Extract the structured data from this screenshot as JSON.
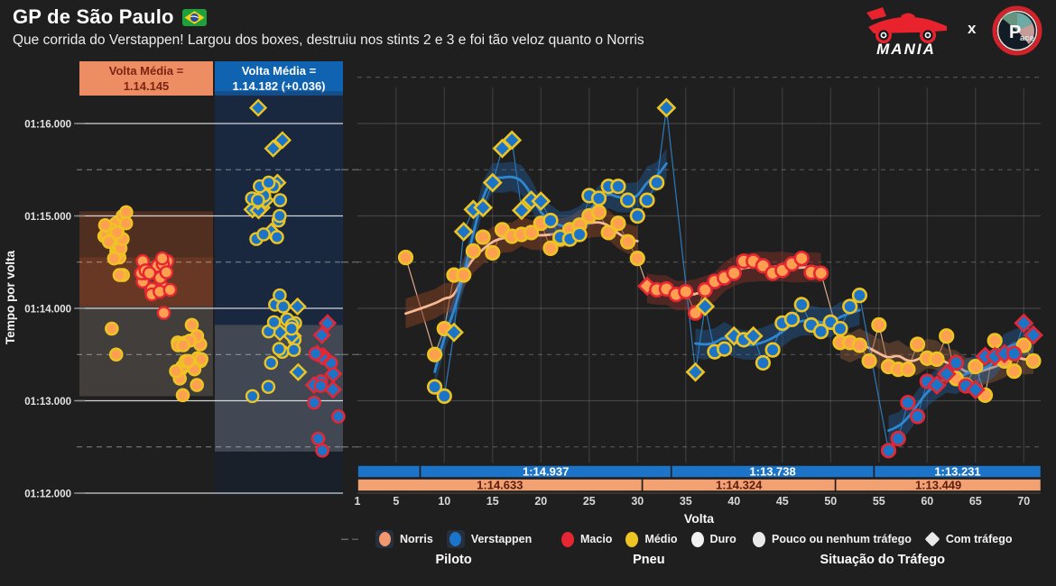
{
  "header": {
    "title": "GP de São Paulo",
    "subtitle": "Que corrida do Verstappen! Largou dos boxes, destruiu nos stints 2 e 3 e foi tão veloz quanto o Norris"
  },
  "logos": {
    "mania_label": "MANIA",
    "separator": "x",
    "pace_initial": "P",
    "pace_rest": "ace"
  },
  "left_panel": {
    "norris_box": "Volta Média =\n1.14.145",
    "verstappen_box": "Volta Média =\n1.14.182 (+0.036)"
  },
  "axes": {
    "y_title": "Tempo por volta",
    "x_title": "Volta"
  },
  "legend": {
    "groups": [
      {
        "title": "Piloto",
        "items": [
          {
            "label": "Norris",
            "shape": "circle-on-card",
            "color": "#F2986E"
          },
          {
            "label": "Verstappen",
            "shape": "circle-on-card",
            "color": "#1B74C8"
          }
        ]
      },
      {
        "title": "Pneu",
        "items": [
          {
            "label": "Macio",
            "shape": "circle",
            "color": "#E62632"
          },
          {
            "label": "Médio",
            "shape": "circle",
            "color": "#EDC421"
          },
          {
            "label": "Duro",
            "shape": "circle",
            "color": "#F2F2F2"
          }
        ]
      },
      {
        "title": "Situação do Tráfego",
        "items": [
          {
            "label": "Pouco ou nenhum tráfego",
            "shape": "circle",
            "color": "#E9E9E9"
          },
          {
            "label": "Com tráfego",
            "shape": "diamond",
            "color": "#E9E9E9"
          }
        ]
      }
    ]
  },
  "chart_data": {
    "type": "scatter",
    "title": "GP de São Paulo — tempo por volta",
    "xlabel": "Volta",
    "ylabel": "Tempo por volta",
    "x_ticks": [
      1,
      5,
      10,
      15,
      20,
      25,
      30,
      35,
      40,
      45,
      50,
      55,
      60,
      65,
      70
    ],
    "x_range": [
      0.5,
      71.8
    ],
    "y_ticks": [
      "01:16.000",
      "01:15.000",
      "01:14.000",
      "01:13.000",
      "01:12.000"
    ],
    "y_tick_seconds": [
      76,
      75,
      74,
      73,
      72
    ],
    "y_range_seconds": [
      71.95,
      76.4
    ],
    "grid": true,
    "legend_position": "bottom",
    "colors": {
      "background": "#1F1F1F",
      "norris_fill": "#FFA050",
      "norris_trend": "#FFC29B",
      "verstappen_fill": "#1B74C8",
      "verstappen_trend": "#2F8BD8",
      "macio": "#E62632",
      "medio": "#EDC421",
      "duro": "#F2F2F2",
      "bar_blue": "#1B74C8",
      "bar_orange": "#F2A172",
      "header_orange": "#EC8D64",
      "header_blue": "#0F63B0"
    },
    "series": [
      {
        "name": "Norris",
        "key": "norris",
        "swarm_centers": [
          128,
          172,
          210
        ],
        "stints": [
          {
            "tire": "medio",
            "ribbon": "rgba(128,62,34,0.55)",
            "laps": [
              [
                6,
                74.55,
                0
              ],
              [
                9,
                73.5,
                0
              ],
              [
                10,
                73.78,
                0
              ],
              [
                11,
                74.36,
                0
              ],
              [
                12,
                74.36,
                0
              ],
              [
                13,
                74.62,
                0
              ],
              [
                14,
                74.77,
                0
              ],
              [
                15,
                74.6,
                0
              ],
              [
                16,
                74.85,
                0
              ],
              [
                17,
                74.78,
                0
              ],
              [
                18,
                74.8,
                0
              ],
              [
                19,
                74.82,
                0
              ],
              [
                20,
                74.92,
                0
              ],
              [
                21,
                74.65,
                0
              ],
              [
                22,
                74.75,
                0
              ],
              [
                23,
                74.85,
                0
              ],
              [
                24,
                74.9,
                0
              ],
              [
                25,
                75.0,
                0
              ],
              [
                26,
                75.04,
                0
              ],
              [
                27,
                74.82,
                0
              ],
              [
                28,
                74.92,
                0
              ],
              [
                29,
                74.72,
                0
              ],
              [
                30,
                74.54,
                0
              ]
            ]
          },
          {
            "tire": "macio",
            "ribbon": "rgba(130,48,38,0.5)",
            "laps": [
              [
                31,
                74.24,
                1
              ],
              [
                32,
                74.2,
                0
              ],
              [
                33,
                74.21,
                0
              ],
              [
                34,
                74.15,
                0
              ],
              [
                35,
                74.18,
                0
              ],
              [
                36,
                73.95,
                0
              ],
              [
                37,
                74.2,
                0
              ],
              [
                38,
                74.29,
                0
              ],
              [
                39,
                74.33,
                0
              ],
              [
                40,
                74.38,
                0
              ],
              [
                41,
                74.51,
                0
              ],
              [
                42,
                74.51,
                0
              ],
              [
                43,
                74.46,
                0
              ],
              [
                44,
                74.38,
                0
              ],
              [
                45,
                74.41,
                0
              ],
              [
                46,
                74.48,
                0
              ],
              [
                47,
                74.54,
                0
              ],
              [
                48,
                74.39,
                0
              ],
              [
                49,
                74.38,
                0
              ]
            ]
          },
          {
            "tire": "medio",
            "ribbon": "rgba(140,88,55,0.45)",
            "laps": [
              [
                51,
                73.63,
                0
              ],
              [
                52,
                73.63,
                0
              ],
              [
                53,
                73.6,
                0
              ],
              [
                54,
                73.43,
                0
              ],
              [
                55,
                73.82,
                0
              ],
              [
                56,
                73.37,
                0
              ],
              [
                57,
                73.34,
                0
              ],
              [
                58,
                73.34,
                0
              ],
              [
                59,
                73.61,
                0
              ],
              [
                60,
                73.46,
                0
              ],
              [
                61,
                73.45,
                0
              ],
              [
                62,
                73.7,
                0
              ],
              [
                63,
                73.24,
                0
              ],
              [
                64,
                73.17,
                0
              ],
              [
                65,
                73.37,
                0
              ],
              [
                66,
                73.06,
                0
              ],
              [
                67,
                73.65,
                0
              ],
              [
                68,
                73.43,
                0
              ],
              [
                69,
                73.32,
                0
              ],
              [
                70,
                73.6,
                0
              ],
              [
                71,
                73.43,
                0
              ]
            ]
          }
        ]
      },
      {
        "name": "Verstappen",
        "key": "verstappen",
        "swarm_centers": [
          296,
          314,
          358
        ],
        "stints": [
          {
            "tire": "medio",
            "ribbon": "rgba(35,110,190,0.35)",
            "laps": [
              [
                9,
                73.15,
                0
              ],
              [
                10,
                73.05,
                0
              ],
              [
                11,
                73.74,
                1
              ],
              [
                12,
                74.83,
                1
              ],
              [
                13,
                75.07,
                1
              ],
              [
                14,
                75.09,
                1
              ],
              [
                15,
                75.36,
                1
              ],
              [
                16,
                75.73,
                1
              ],
              [
                17,
                75.82,
                1
              ],
              [
                18,
                75.06,
                1
              ],
              [
                19,
                75.17,
                1
              ],
              [
                20,
                75.16,
                1
              ],
              [
                21,
                74.95,
                0
              ],
              [
                22,
                74.77,
                0
              ],
              [
                23,
                74.75,
                0
              ],
              [
                24,
                74.8,
                0
              ],
              [
                25,
                75.22,
                0
              ],
              [
                26,
                75.19,
                0
              ],
              [
                27,
                75.32,
                0
              ],
              [
                28,
                75.32,
                0
              ],
              [
                29,
                75.17,
                0
              ],
              [
                30,
                75.0,
                0
              ],
              [
                31,
                75.17,
                0
              ],
              [
                32,
                75.36,
                0
              ],
              [
                33,
                76.17,
                1
              ]
            ]
          },
          {
            "tire": "medio",
            "ribbon": "rgba(35,110,190,0.35)",
            "laps": [
              [
                36,
                73.31,
                1
              ],
              [
                37,
                74.02,
                1
              ],
              [
                38,
                73.53,
                0
              ],
              [
                39,
                73.56,
                0
              ],
              [
                40,
                73.7,
                1
              ],
              [
                41,
                73.66,
                0
              ],
              [
                42,
                73.7,
                1
              ],
              [
                43,
                73.41,
                0
              ],
              [
                44,
                73.55,
                0
              ],
              [
                45,
                73.84,
                0
              ],
              [
                46,
                73.88,
                0
              ],
              [
                47,
                74.04,
                0
              ],
              [
                48,
                73.82,
                0
              ],
              [
                49,
                73.75,
                0
              ],
              [
                50,
                73.85,
                0
              ],
              [
                51,
                73.78,
                0
              ],
              [
                52,
                74.02,
                0
              ],
              [
                53,
                74.14,
                0
              ]
            ]
          },
          {
            "tire": "macio",
            "ribbon": "rgba(35,110,190,0.35)",
            "laps": [
              [
                56,
                72.46,
                0
              ],
              [
                57,
                72.59,
                0
              ],
              [
                58,
                72.98,
                0
              ],
              [
                59,
                72.83,
                0
              ],
              [
                60,
                73.21,
                0
              ],
              [
                61,
                73.17,
                1
              ],
              [
                62,
                73.29,
                1
              ],
              [
                63,
                73.41,
                0
              ],
              [
                64,
                73.16,
                0
              ],
              [
                65,
                73.12,
                1
              ],
              [
                66,
                73.48,
                1
              ],
              [
                67,
                73.48,
                1
              ],
              [
                68,
                73.51,
                1
              ],
              [
                69,
                73.51,
                0
              ],
              [
                70,
                73.84,
                1
              ],
              [
                71,
                73.71,
                1
              ]
            ]
          }
        ]
      }
    ],
    "stint_bars": [
      {
        "driver": "Verstappen",
        "color": "#1B74C8",
        "text_color": "#FFFFFF",
        "segments": [
          {
            "from_lap": 1,
            "to_lap": 7.5,
            "label": ""
          },
          {
            "from_lap": 7.5,
            "to_lap": 33.5,
            "label": "1:14.937"
          },
          {
            "from_lap": 33.5,
            "to_lap": 54.5,
            "label": "1:13.738"
          },
          {
            "from_lap": 54.5,
            "to_lap": 71.8,
            "label": "1:13.231"
          }
        ]
      },
      {
        "driver": "Norris",
        "color": "#F2A172",
        "text_color": "#5C1D0E",
        "segments": [
          {
            "from_lap": 1,
            "to_lap": 30.5,
            "label": "1:14.633"
          },
          {
            "from_lap": 30.5,
            "to_lap": 50.5,
            "label": "1:14.324"
          },
          {
            "from_lap": 50.5,
            "to_lap": 71.8,
            "label": "1:13.449"
          }
        ]
      }
    ],
    "beeswarm": {
      "norris_average": "1.14.145",
      "verstappen_average": "1.14.182 (+0.036)",
      "norris_bands": [
        {
          "from_s": 75.05,
          "to_s": 74.02,
          "color": "rgba(120,58,32,0.55)"
        },
        {
          "from_s": 74.55,
          "to_s": 74.02,
          "color": "rgba(165,80,50,0.30)"
        },
        {
          "from_s": 74.02,
          "to_s": 73.05,
          "color": "rgba(120,112,105,0.38)"
        }
      ],
      "verstappen_bands": [
        {
          "from_s": 76.35,
          "to_s": 73.82,
          "color": "rgba(28,52,88,0.45)"
        },
        {
          "from_s": 73.82,
          "to_s": 72.45,
          "color": "rgba(125,133,144,0.40)"
        }
      ]
    }
  }
}
